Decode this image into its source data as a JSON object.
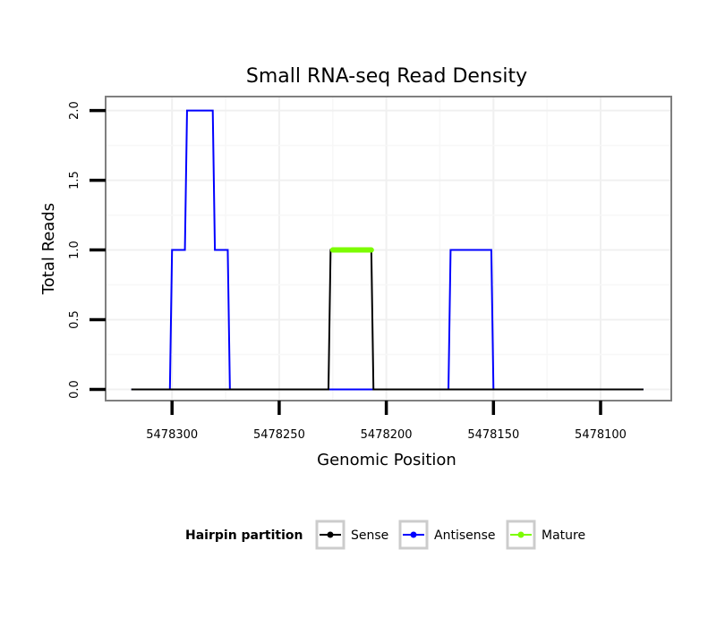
{
  "chart_data": {
    "type": "line",
    "title": "Small RNA-seq Read Density",
    "xlabel": "Genomic Position",
    "ylabel": "Total Reads",
    "x_reversed": true,
    "xlim": [
      5478067,
      5478331
    ],
    "ylim": [
      -0.08,
      2.1
    ],
    "x_ticks": [
      5478300,
      5478250,
      5478200,
      5478150,
      5478100
    ],
    "x_tick_labels": [
      "5478300",
      "5478250",
      "5478200",
      "5478150",
      "5478100"
    ],
    "y_ticks": [
      0.0,
      0.5,
      1.0,
      1.5,
      2.0
    ],
    "y_tick_labels": [
      "0.0",
      "0.5",
      "1.0",
      "1.5",
      "2.0"
    ],
    "series": [
      {
        "name": "Antisense",
        "color": "#0000ff",
        "x": [
          5478319,
          5478301,
          5478300,
          5478294,
          5478293,
          5478281,
          5478280,
          5478274,
          5478273,
          5478226,
          5478225,
          5478207,
          5478206,
          5478171,
          5478170,
          5478151,
          5478150,
          5478080
        ],
        "values": [
          0,
          0,
          1,
          1,
          2,
          2,
          1,
          1,
          0,
          0,
          0,
          0,
          0,
          0,
          1,
          1,
          0,
          0
        ]
      },
      {
        "name": "Sense",
        "color": "#000000",
        "x": [
          5478319,
          5478227,
          5478226,
          5478207,
          5478206,
          5478080
        ],
        "values": [
          0,
          0,
          1,
          1,
          0,
          0
        ]
      },
      {
        "name": "Mature",
        "color": "#7cfc00",
        "x": [
          5478225,
          5478207
        ],
        "values": [
          1,
          1
        ]
      }
    ],
    "legend": {
      "title": "Hairpin partition",
      "position": "bottom",
      "entries": [
        {
          "label": "Sense",
          "color": "#000000"
        },
        {
          "label": "Antisense",
          "color": "#0000ff"
        },
        {
          "label": "Mature",
          "color": "#7cfc00"
        }
      ]
    }
  }
}
